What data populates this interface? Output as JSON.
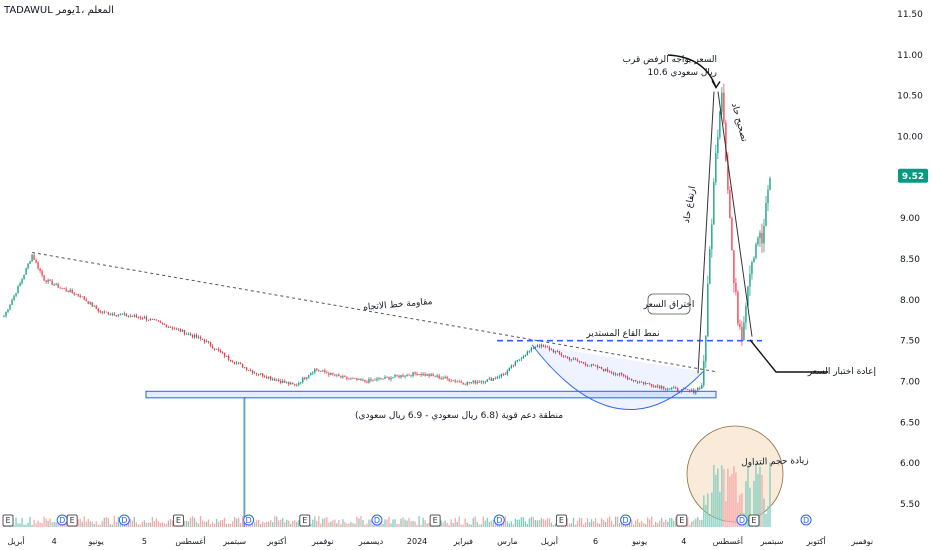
{
  "header": {
    "title": "TADAWUL المعلم ،1يومر"
  },
  "chart_data": {
    "type": "candlestick",
    "ylim": [
      5.35,
      11.55
    ],
    "y_ticks": [
      11.5,
      11.0,
      10.5,
      10.0,
      9.5,
      9.0,
      8.5,
      8.0,
      7.5,
      7.0,
      6.5,
      6.0,
      5.5
    ],
    "y_tick_labels": [
      "11.50",
      "11.00",
      "10.50",
      "10.00",
      "9.50",
      "9.00",
      "8.50",
      "8.00",
      "7.50",
      "7.00",
      "6.50",
      "6.00",
      "5.50"
    ],
    "x_ticks": [
      {
        "label": "أبريل",
        "i": 6
      },
      {
        "label": "4",
        "i": 25
      },
      {
        "label": "يونيو",
        "i": 46
      },
      {
        "label": "5",
        "i": 70
      },
      {
        "label": "أغسطس",
        "i": 93
      },
      {
        "label": "سبتمبر",
        "i": 115
      },
      {
        "label": "أكتوبر",
        "i": 136
      },
      {
        "label": "نوفمبر",
        "i": 159
      },
      {
        "label": "ديسمبر",
        "i": 183
      },
      {
        "label": "2024",
        "i": 206
      },
      {
        "label": "فبراير",
        "i": 229
      },
      {
        "label": "مارس",
        "i": 251
      },
      {
        "label": "أبريل",
        "i": 272
      },
      {
        "label": "6",
        "i": 295
      },
      {
        "label": "يونيو",
        "i": 317
      },
      {
        "label": "4",
        "i": 339
      },
      {
        "label": "أغسطس",
        "i": 361
      },
      {
        "label": "سبتمبر",
        "i": 383
      },
      {
        "label": "أكتوبر",
        "i": 405
      },
      {
        "label": "نوفمبر",
        "i": 428
      }
    ],
    "last_price": 9.52,
    "last_price_label": "9.52",
    "anchors": [
      [
        0,
        7.8
      ],
      [
        8,
        8.2
      ],
      [
        14,
        8.55
      ],
      [
        20,
        8.25
      ],
      [
        28,
        8.15
      ],
      [
        38,
        8.05
      ],
      [
        48,
        7.85
      ],
      [
        58,
        7.82
      ],
      [
        70,
        7.78
      ],
      [
        85,
        7.65
      ],
      [
        100,
        7.5
      ],
      [
        112,
        7.28
      ],
      [
        124,
        7.12
      ],
      [
        136,
        7.02
      ],
      [
        145,
        6.95
      ],
      [
        155,
        7.15
      ],
      [
        168,
        7.05
      ],
      [
        180,
        7.0
      ],
      [
        193,
        7.05
      ],
      [
        206,
        7.1
      ],
      [
        218,
        7.05
      ],
      [
        230,
        6.98
      ],
      [
        242,
        7.02
      ],
      [
        250,
        7.1
      ],
      [
        258,
        7.3
      ],
      [
        266,
        7.45
      ],
      [
        272,
        7.4
      ],
      [
        280,
        7.3
      ],
      [
        292,
        7.2
      ],
      [
        305,
        7.1
      ],
      [
        316,
        7.0
      ],
      [
        325,
        6.95
      ],
      [
        335,
        6.9
      ],
      [
        344,
        6.88
      ],
      [
        348,
        6.95
      ],
      [
        350,
        7.6
      ],
      [
        352,
        8.6
      ],
      [
        354,
        9.4
      ],
      [
        356,
        10.1
      ],
      [
        358,
        10.62
      ],
      [
        360,
        9.8
      ],
      [
        362,
        9.0
      ],
      [
        364,
        8.2
      ],
      [
        366,
        7.8
      ],
      [
        368,
        7.6
      ],
      [
        370,
        8.0
      ],
      [
        372,
        8.4
      ],
      [
        374,
        8.6
      ],
      [
        376,
        8.8
      ],
      [
        378,
        8.7
      ],
      [
        380,
        9.1
      ],
      [
        382,
        9.52
      ]
    ],
    "volume_spike": {
      "i": 120,
      "label": "volume spike"
    },
    "annotations": {
      "trendline_label": "مقاومة خط الاتجاه",
      "support_label": "منطقة دعم قوية (6.8 ريال سعودي - 6.9 ريال سعودي)",
      "neckline_label": "نمط القاع المستدير",
      "breakout_label": "اختراق السعر",
      "top_label_line1": "السعر يواجه الرفض قرب",
      "top_label_line2": "10.6 ريال سعودي",
      "retest_label": "إعادة اختبار السعر",
      "rise_label": "ارتفاع حاد",
      "drop_label": "تصحيح حاد",
      "volume_label": "زيادة حجم التداول"
    },
    "events": [
      {
        "i": 2,
        "label": "E"
      },
      {
        "i": 29,
        "label": "D"
      },
      {
        "i": 34,
        "label": "E"
      },
      {
        "i": 60,
        "label": "D"
      },
      {
        "i": 87,
        "label": "E"
      },
      {
        "i": 122,
        "label": "D"
      },
      {
        "i": 150,
        "label": "E"
      },
      {
        "i": 186,
        "label": "D"
      },
      {
        "i": 215,
        "label": "E"
      },
      {
        "i": 247,
        "label": "D"
      },
      {
        "i": 278,
        "label": "E"
      },
      {
        "i": 310,
        "label": "D"
      },
      {
        "i": 338,
        "label": "E"
      },
      {
        "i": 368,
        "label": "D"
      },
      {
        "i": 374,
        "label": "E"
      },
      {
        "i": 400,
        "label": "D"
      }
    ],
    "colors": {
      "up": "#089981",
      "down": "#f23645",
      "volume_up": "#7fcdbf",
      "volume_down": "#f7a9a9",
      "support_zone": "#2962ff",
      "neckline": "#2962ff",
      "price_badge": "#089981",
      "volume_circle_fill": "#f8e3cc"
    }
  }
}
